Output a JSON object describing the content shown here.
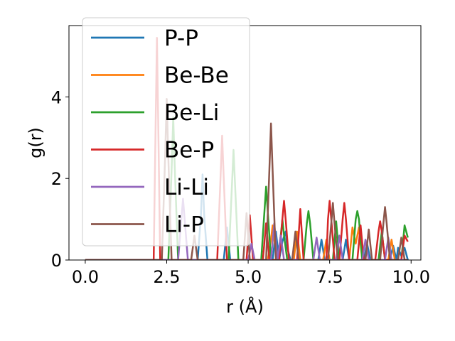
{
  "chart_data": {
    "type": "line",
    "title": "",
    "xlabel": "r (Å)",
    "ylabel": "g(r)",
    "xlim": [
      -0.5,
      10.3
    ],
    "ylim": [
      0,
      5.75
    ],
    "xticks": [
      0.0,
      2.5,
      5.0,
      7.5,
      10.0
    ],
    "xtick_labels": [
      "0.0",
      "2.5",
      "5.0",
      "7.5",
      "10.0"
    ],
    "yticks": [
      0,
      2,
      4
    ],
    "ytick_labels": [
      "0",
      "2",
      "4"
    ],
    "grid": false,
    "legend_position": "upper-left",
    "series": [
      {
        "name": "P-P",
        "color": "#1f77b4",
        "x": [
          0.0,
          3.45,
          3.55,
          3.6,
          3.65,
          3.75,
          4.25,
          4.35,
          4.45,
          5.75,
          5.85,
          5.95,
          6.05,
          6.15,
          6.2,
          6.3,
          6.4,
          7.15,
          7.25,
          7.35,
          7.9,
          8.0,
          8.1,
          8.55,
          8.65,
          8.75,
          9.35,
          9.45,
          9.55,
          9.6,
          9.7,
          9.8,
          9.9
        ],
        "y": [
          0,
          0,
          1.1,
          2.1,
          1.1,
          0,
          0,
          0.8,
          0,
          0,
          0.7,
          0,
          0.45,
          0.7,
          0.3,
          0,
          0,
          0,
          0.5,
          0,
          0,
          0.5,
          0,
          0,
          0.4,
          0,
          0,
          0.35,
          0,
          0.3,
          0.1,
          0.3,
          0
        ]
      },
      {
        "name": "Be-Be",
        "color": "#ff7f0e",
        "x": [
          0.0,
          5.6,
          5.7,
          5.75,
          5.8,
          5.9,
          6.4,
          6.5,
          6.6,
          7.3,
          7.4,
          7.5,
          8.1,
          8.2,
          8.3,
          8.4,
          8.5,
          9.3,
          9.4,
          9.5,
          9.9
        ],
        "y": [
          0,
          0,
          0.5,
          0.85,
          0.5,
          0,
          0,
          0.7,
          0,
          0,
          0.5,
          0,
          0,
          0.8,
          0.4,
          0.8,
          0,
          0,
          0.5,
          0,
          0
        ]
      },
      {
        "name": "Be-Li",
        "color": "#2ca02c",
        "x": [
          0.0,
          2.55,
          2.65,
          2.7,
          2.75,
          2.85,
          4.4,
          4.5,
          4.55,
          4.6,
          4.7,
          5.4,
          5.5,
          5.55,
          5.6,
          5.7,
          5.9,
          6.0,
          6.05,
          6.1,
          6.2,
          6.7,
          6.8,
          6.85,
          6.9,
          7.0,
          7.6,
          7.7,
          7.8,
          8.2,
          8.3,
          8.35,
          8.4,
          8.5,
          9.0,
          9.1,
          9.2,
          9.7,
          9.8,
          9.9
        ],
        "y": [
          0,
          0,
          2.2,
          3.5,
          2.2,
          0,
          0,
          1.8,
          2.7,
          1.8,
          0,
          0,
          1.2,
          1.8,
          1.2,
          0,
          0,
          0.6,
          1.0,
          0.6,
          0,
          0,
          0.9,
          1.2,
          0.9,
          0,
          0,
          0.95,
          0,
          0,
          1.0,
          1.2,
          1.0,
          0,
          0,
          0.7,
          0,
          0,
          0.85,
          0.55
        ]
      },
      {
        "name": "Be-P",
        "color": "#d62728",
        "x": [
          0.0,
          2.1,
          2.15,
          2.2,
          2.25,
          2.3,
          4.05,
          4.15,
          4.2,
          4.25,
          4.35,
          4.95,
          5.05,
          5.15,
          5.45,
          5.55,
          5.65,
          5.95,
          6.05,
          6.1,
          6.15,
          6.25,
          6.5,
          6.6,
          6.7,
          7.4,
          7.45,
          7.5,
          7.55,
          7.65,
          7.8,
          7.9,
          7.95,
          8.0,
          8.1,
          8.35,
          8.45,
          8.55,
          8.9,
          9.0,
          9.05,
          9.1,
          9.2,
          9.7,
          9.8,
          9.9
        ],
        "y": [
          0,
          0,
          2.8,
          5.45,
          2.8,
          0,
          0,
          2.0,
          3.05,
          2.0,
          0,
          0,
          1.1,
          0,
          0,
          0.9,
          0,
          0,
          1.0,
          1.45,
          1.0,
          0,
          0,
          1.25,
          0,
          0,
          1.0,
          1.45,
          1.0,
          0,
          0,
          1.0,
          1.4,
          1.0,
          0,
          0,
          0.85,
          0,
          0,
          0.7,
          0.95,
          0.7,
          0,
          0,
          0.6,
          0.45
        ]
      },
      {
        "name": "Li-Li",
        "color": "#9467bd",
        "x": [
          0.0,
          2.85,
          2.95,
          3.0,
          3.05,
          3.15,
          5.0,
          5.1,
          5.2,
          5.7,
          5.8,
          5.9,
          6.0,
          6.1,
          7.0,
          7.1,
          7.2,
          7.7,
          7.8,
          7.9,
          8.5,
          8.6,
          8.7,
          9.2,
          9.3,
          9.4,
          9.9
        ],
        "y": [
          0,
          0,
          1.0,
          1.5,
          1.0,
          0,
          0,
          0.4,
          0,
          0,
          0.9,
          0,
          0.6,
          0,
          0,
          0.55,
          0,
          0,
          0.6,
          0,
          0,
          0.5,
          0,
          0,
          0.55,
          0,
          0
        ]
      },
      {
        "name": "Li-P",
        "color": "#8c564b",
        "x": [
          0.0,
          2.35,
          2.45,
          2.5,
          2.55,
          2.65,
          3.25,
          3.35,
          3.45,
          4.85,
          4.95,
          5.05,
          5.55,
          5.65,
          5.7,
          5.75,
          5.85,
          6.35,
          6.45,
          6.55,
          7.45,
          7.55,
          7.6,
          7.65,
          7.75,
          8.6,
          8.7,
          8.8,
          9.05,
          9.15,
          9.2,
          9.25,
          9.35,
          9.6,
          9.7,
          9.8,
          9.9
        ],
        "y": [
          0,
          0,
          2.5,
          3.95,
          2.5,
          0,
          0,
          0.6,
          0,
          0,
          1.15,
          0,
          0,
          2.2,
          3.35,
          2.2,
          0,
          0,
          0.7,
          0,
          0,
          0.9,
          1.4,
          0.9,
          0,
          0,
          0.75,
          0,
          0,
          0.9,
          1.3,
          0.9,
          0,
          0,
          0.55,
          0,
          0
        ]
      }
    ]
  }
}
